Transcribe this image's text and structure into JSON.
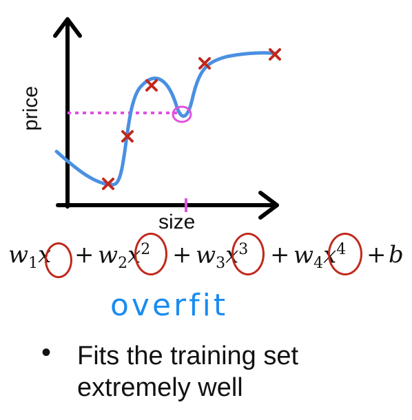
{
  "chart_data": {
    "type": "scatter",
    "xlabel": "size",
    "ylabel": "price",
    "points": [
      {
        "x": 1.0,
        "y": 0.6
      },
      {
        "x": 1.5,
        "y": 1.9
      },
      {
        "x": 2.0,
        "y": 3.3
      },
      {
        "x": 4.0,
        "y": 4.6
      },
      {
        "x": 5.5,
        "y": 4.9
      }
    ],
    "fit_curve": "quartic polynomial (overfit)",
    "annotation_x": 3.0,
    "annotation_y": 2.5
  },
  "formula": {
    "t1": "w",
    "s1": "1",
    "x1": "x",
    "op1": "+",
    "t2": "w",
    "s2": "2",
    "x2": "x",
    "p2": "2",
    "op2": "+",
    "t3": "w",
    "s3": "3",
    "x3": "x",
    "p3": "3",
    "op3": "+",
    "t4": "w",
    "s4": "4",
    "x4": "x",
    "p4": "4",
    "op4": "+",
    "b": "b"
  },
  "annotation": "overfit",
  "bullet": {
    "symbol": "•",
    "text": "Fits the training set extremely well"
  },
  "colors": {
    "curve": "#4a90e2",
    "marker": "#c0281c",
    "highlight": "#e050e0",
    "annotation": "#1a8cf0"
  }
}
